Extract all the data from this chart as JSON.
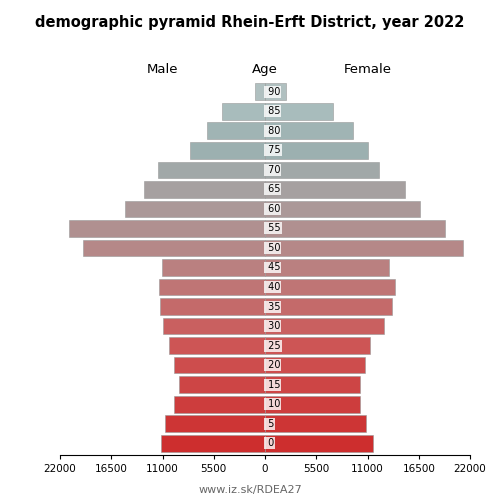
{
  "title": "demographic pyramid Rhein-Erft District, year 2022",
  "xlabel_left": "Male",
  "xlabel_right": "Female",
  "xlabel_center": "Age",
  "footer": "www.iz.sk/RDEA27",
  "age_groups": [
    0,
    5,
    10,
    15,
    20,
    25,
    30,
    35,
    40,
    45,
    50,
    55,
    60,
    65,
    70,
    75,
    80,
    85,
    90
  ],
  "male": [
    11200,
    10700,
    9800,
    9200,
    9800,
    10300,
    11000,
    11300,
    11400,
    11100,
    19500,
    21000,
    15000,
    13000,
    11500,
    8000,
    6200,
    4600,
    1100
  ],
  "female": [
    11600,
    10800,
    10200,
    10200,
    10700,
    11300,
    12800,
    13600,
    14000,
    13300,
    21200,
    19300,
    16600,
    15000,
    12200,
    11000,
    9400,
    7300,
    2300
  ],
  "xlim": 22000,
  "xtick_vals": [
    -22000,
    -16500,
    -11000,
    -5500,
    0,
    5500,
    11000,
    16500,
    22000
  ],
  "xtick_labels": [
    "22000",
    "16500",
    "11000",
    "5500",
    "0",
    "5500",
    "11000",
    "16500",
    "22000"
  ],
  "colors": [
    "#cd2e2e",
    "#cd3535",
    "#cd3d3d",
    "#cd4545",
    "#cd4d4d",
    "#cd5555",
    "#c96060",
    "#c46a6a",
    "#bf7575",
    "#ba8080",
    "#b58888",
    "#b09090",
    "#ab9898",
    "#a6a0a0",
    "#a1a8a8",
    "#9cb0b0",
    "#a0b4b4",
    "#a8bcbc",
    "#b0c0c0"
  ],
  "bar_height": 0.85,
  "bg_color": "#ffffff",
  "bar_edge_color": "#999999",
  "bar_edge_width": 0.4
}
